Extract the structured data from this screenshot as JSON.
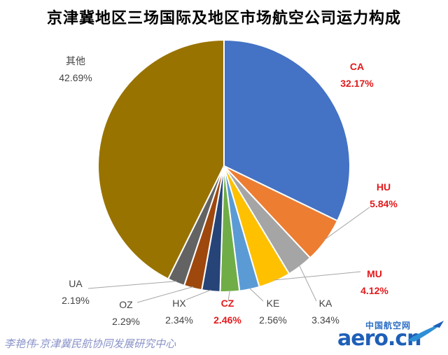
{
  "chart_data": {
    "type": "pie",
    "title": "京津冀地区三场国际及地区市场航空公司运力构成",
    "slices": [
      {
        "name": "CA",
        "label": "CA",
        "value_label": "32.17%",
        "value": 32.17,
        "color": "#4472c4",
        "label_color": "#e31a1c"
      },
      {
        "name": "HU",
        "label": "HU",
        "value_label": "5.84%",
        "value": 5.84,
        "color": "#ed7d31",
        "label_color": "#e31a1c"
      },
      {
        "name": "KA",
        "label": "KA",
        "value_label": "3.34%",
        "value": 3.34,
        "color": "#a5a5a5",
        "label_color": "#444444"
      },
      {
        "name": "MU",
        "label": "MU",
        "value_label": "4.12%",
        "value": 4.12,
        "color": "#ffc000",
        "label_color": "#e31a1c"
      },
      {
        "name": "KE",
        "label": "KE",
        "value_label": "2.56%",
        "value": 2.56,
        "color": "#5b9bd5",
        "label_color": "#444444"
      },
      {
        "name": "CZ",
        "label": "CZ",
        "value_label": "2.46%",
        "value": 2.46,
        "color": "#70ad47",
        "label_color": "#e31a1c"
      },
      {
        "name": "HX",
        "label": "HX",
        "value_label": "2.34%",
        "value": 2.34,
        "color": "#264478",
        "label_color": "#444444"
      },
      {
        "name": "OZ",
        "label": "OZ",
        "value_label": "2.29%",
        "value": 2.29,
        "color": "#9e480e",
        "label_color": "#444444"
      },
      {
        "name": "UA",
        "label": "UA",
        "value_label": "2.19%",
        "value": 2.19,
        "color": "#636363",
        "label_color": "#444444"
      },
      {
        "name": "其他",
        "label": "其他",
        "value_label": "42.69%",
        "value": 42.69,
        "color": "#997300",
        "label_color": "#444444"
      }
    ]
  },
  "footer": {
    "author_text": "李艳伟-京津冀民航协同发展研究中心",
    "logo_cn": "中国航空网",
    "logo_word": "aero.cn"
  }
}
